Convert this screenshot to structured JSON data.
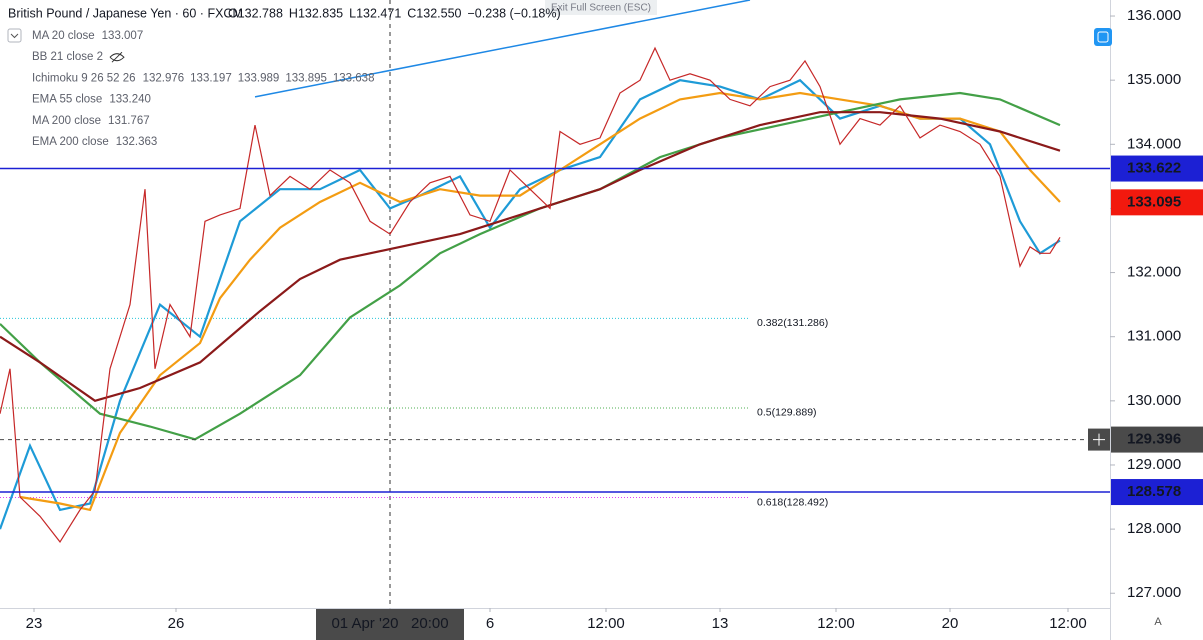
{
  "header": {
    "symbol": "British Pound / Japanese Yen · 60 · FXCM",
    "ohlc": [
      "O132.788",
      "H132.835",
      "L132.471",
      "C132.550",
      "−0.238 (−0.18%)"
    ],
    "exit_button": "Exit Full Screen (ESC)"
  },
  "chart_data": {
    "type": "line",
    "xlim": [
      0,
      555
    ],
    "ylim": [
      126.77,
      136.25
    ],
    "grid": false,
    "xticks": [
      {
        "value": 17,
        "label": "23"
      },
      {
        "value": 88,
        "label": "26"
      },
      {
        "value": 195,
        "label": "01 Apr '20   20:00",
        "highlight": true
      },
      {
        "value": 245,
        "label": "6"
      },
      {
        "value": 303,
        "label": "12:00"
      },
      {
        "value": 360,
        "label": "13"
      },
      {
        "value": 418,
        "label": "12:00"
      },
      {
        "value": 475,
        "label": "20"
      },
      {
        "value": 534,
        "label": "12:00"
      }
    ],
    "yticks": [
      {
        "value": 127,
        "label": "127.000"
      },
      {
        "value": 128,
        "label": "128.000"
      },
      {
        "value": 129,
        "label": "129.000"
      },
      {
        "value": 130,
        "label": "130.000"
      },
      {
        "value": 131,
        "label": "131.000"
      },
      {
        "value": 132,
        "label": "132.000"
      },
      {
        "value": 133,
        "label": "133.000"
      },
      {
        "value": 134,
        "label": "134.000"
      },
      {
        "value": 135,
        "label": "135.000"
      },
      {
        "value": 136,
        "label": "136.000"
      }
    ],
    "close": {
      "color": "#c62828",
      "x": [
        0,
        5,
        10,
        20,
        30,
        40,
        47.5,
        55,
        65,
        72.5,
        77.5,
        85,
        95,
        102.5,
        110,
        120,
        127.5,
        135,
        145,
        155,
        165,
        175,
        185,
        195,
        205,
        215,
        225,
        235,
        245,
        255,
        265,
        275,
        280,
        290,
        300,
        310,
        320,
        327.5,
        335,
        345,
        355,
        365,
        375,
        385,
        395,
        402.5,
        410,
        420,
        430,
        440,
        450,
        460,
        470,
        480,
        490,
        500,
        505,
        510,
        515,
        520,
        525,
        530
      ],
      "values": [
        129.8,
        130.5,
        128.5,
        128.2,
        127.8,
        128.3,
        128.6,
        130.5,
        131.5,
        133.3,
        130.5,
        131.5,
        131.0,
        132.8,
        132.9,
        133.0,
        134.3,
        133.2,
        133.5,
        133.3,
        133.6,
        133.4,
        132.8,
        132.6,
        133.1,
        133.4,
        133.5,
        132.9,
        132.8,
        133.6,
        133.3,
        133.0,
        134.2,
        134.0,
        134.1,
        134.8,
        135.0,
        135.5,
        135.0,
        135.1,
        135.0,
        134.7,
        134.6,
        134.9,
        135.0,
        135.3,
        134.9,
        134.0,
        134.4,
        134.3,
        134.6,
        134.1,
        134.3,
        134.2,
        134.0,
        133.5,
        132.8,
        132.1,
        132.4,
        132.3,
        132.3,
        132.55
      ]
    },
    "indicators": [
      {
        "name": "MA 20 close",
        "readouts": [
          "133.007"
        ],
        "colors": [
          "#1e9bd7"
        ],
        "color": "#1e9bd7",
        "x": [
          0,
          15,
          30,
          45,
          60,
          80,
          100,
          120,
          140,
          160,
          180,
          195,
          210,
          230,
          245,
          260,
          280,
          300,
          320,
          340,
          360,
          380,
          400,
          420,
          440,
          460,
          480,
          495,
          510,
          520,
          530
        ],
        "values": [
          128.0,
          129.3,
          128.3,
          128.4,
          130.0,
          131.5,
          131.0,
          132.8,
          133.3,
          133.3,
          133.6,
          133.0,
          133.2,
          133.5,
          132.7,
          133.3,
          133.6,
          133.8,
          134.7,
          135.0,
          134.9,
          134.7,
          135.0,
          134.4,
          134.6,
          134.4,
          134.4,
          134.0,
          132.8,
          132.3,
          132.5
        ]
      },
      {
        "name": "BB 21 close 2"
      },
      {
        "name": "Ichimoku 9 26 52 26",
        "readouts": [
          "132.976",
          "133.197",
          "133.989",
          "133.895",
          "133.638"
        ],
        "colors": [
          "#1e9bd7",
          "#8b1a1a",
          "#4caf50",
          "#43a047",
          "#ef5350"
        ]
      },
      {
        "name": "EMA 55 close",
        "readouts": [
          "133.240"
        ],
        "colors": [
          "#f39c12"
        ],
        "color": "#f39c12",
        "x": [
          10,
          30,
          45,
          60,
          80,
          100,
          110,
          125,
          140,
          160,
          180,
          200,
          220,
          240,
          260,
          280,
          300,
          320,
          340,
          360,
          380,
          400,
          420,
          440,
          460,
          480,
          500,
          515,
          530
        ],
        "values": [
          128.5,
          128.4,
          128.3,
          129.5,
          130.4,
          130.9,
          131.6,
          132.2,
          132.7,
          133.1,
          133.4,
          133.1,
          133.3,
          133.2,
          133.2,
          133.6,
          134.0,
          134.4,
          134.7,
          134.8,
          134.7,
          134.8,
          134.7,
          134.6,
          134.4,
          134.4,
          134.2,
          133.6,
          133.1
        ]
      },
      {
        "name": "MA 200 close",
        "readouts": [
          "131.767"
        ],
        "colors": [
          "#43a047"
        ],
        "color": "#43a047",
        "x": [
          0,
          20,
          50,
          75,
          97.5,
          120,
          150,
          175,
          200,
          220,
          240,
          270,
          300,
          330,
          360,
          390,
          420,
          450,
          480,
          500,
          530
        ],
        "values": [
          131.2,
          130.6,
          129.8,
          129.6,
          129.4,
          129.8,
          130.4,
          131.3,
          131.8,
          132.3,
          132.6,
          133.0,
          133.3,
          133.8,
          134.1,
          134.3,
          134.5,
          134.7,
          134.8,
          134.7,
          134.3
        ]
      },
      {
        "name": "EMA 200 close",
        "readouts": [
          "132.363"
        ],
        "colors": [
          "#8b1a1a"
        ],
        "color": "#8b1a1a",
        "x": [
          0,
          20,
          47.5,
          70,
          100,
          130,
          150,
          170,
          200,
          230,
          260,
          280,
          300,
          320,
          350,
          380,
          410,
          440,
          470,
          500,
          530
        ],
        "values": [
          131.0,
          130.6,
          130.0,
          130.2,
          130.6,
          131.4,
          131.9,
          132.2,
          132.4,
          132.6,
          132.9,
          133.1,
          133.3,
          133.6,
          134.0,
          134.3,
          134.5,
          134.5,
          134.4,
          134.2,
          133.9
        ]
      }
    ],
    "trendline": {
      "x": [
        127.5,
        375
      ],
      "y": [
        134.74,
        136.25
      ],
      "color": "#1e88e5"
    },
    "fibs": [
      {
        "label": "0.382(131.286)",
        "value": 131.286,
        "color": "#26c6da"
      },
      {
        "label": "0.5(129.889)",
        "value": 129.889,
        "color": "#4caf50"
      },
      {
        "label": "0.618(128.492)",
        "value": 128.492,
        "color": "#e040fb"
      }
    ],
    "price_labels": [
      {
        "value": 133.622,
        "color": "#1c20d4",
        "line": "solid"
      },
      {
        "value": 133.095,
        "color": "#f2190e"
      },
      {
        "value": 129.396,
        "color": "#4a4a4a",
        "line": "dashed"
      },
      {
        "value": 128.578,
        "color": "#1c20d4",
        "line": "solid"
      }
    ]
  }
}
